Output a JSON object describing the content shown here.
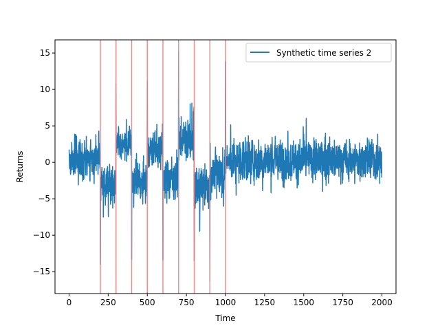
{
  "chart_data": {
    "type": "line",
    "title": "",
    "xlabel": "Time",
    "ylabel": "Returns",
    "xlim": [
      -90,
      2090
    ],
    "ylim": [
      -18,
      16.8
    ],
    "xticks": [
      0,
      250,
      500,
      750,
      1000,
      1250,
      1500,
      1750,
      2000
    ],
    "yticks": [
      -15,
      -10,
      -5,
      0,
      5,
      10,
      15
    ],
    "grid": false,
    "legend": {
      "placement": "top-right",
      "entries": [
        "Synthetic time series 2"
      ]
    },
    "series": [
      {
        "name": "Synthetic time series 2",
        "color": "#1f77b4",
        "n_points": 2000,
        "x_range": [
          0,
          2000
        ],
        "key_points": [
          {
            "x": 200,
            "y": -14.0
          },
          {
            "x": 300,
            "y": 10.8
          },
          {
            "x": 400,
            "y": -13.3
          },
          {
            "x": 500,
            "y": 11.2
          },
          {
            "x": 600,
            "y": -13.4
          },
          {
            "x": 700,
            "y": 15.2
          },
          {
            "x": 800,
            "y": -13.5
          },
          {
            "x": 900,
            "y": -16.3
          },
          {
            "x": 1000,
            "y": 13.8
          }
        ],
        "segment_levels": [
          {
            "from": 0,
            "to": 200,
            "level": 0.5,
            "spread": 2.0
          },
          {
            "from": 200,
            "to": 300,
            "level": -3.0,
            "spread": 2.0
          },
          {
            "from": 300,
            "to": 400,
            "level": 2.5,
            "spread": 1.5
          },
          {
            "from": 400,
            "to": 500,
            "level": -2.5,
            "spread": 2.0
          },
          {
            "from": 500,
            "to": 600,
            "level": 2.0,
            "spread": 2.0
          },
          {
            "from": 600,
            "to": 700,
            "level": -2.0,
            "spread": 2.0
          },
          {
            "from": 700,
            "to": 800,
            "level": 3.0,
            "spread": 2.0
          },
          {
            "from": 800,
            "to": 900,
            "level": -3.5,
            "spread": 2.0
          },
          {
            "from": 900,
            "to": 1000,
            "level": -1.5,
            "spread": 2.0
          },
          {
            "from": 1000,
            "to": 2000,
            "level": 0.3,
            "spread": 2.0
          }
        ]
      }
    ],
    "vertical_lines": {
      "x": [
        200,
        300,
        400,
        500,
        600,
        700,
        800,
        900,
        1000
      ],
      "color": "#f08080"
    }
  }
}
